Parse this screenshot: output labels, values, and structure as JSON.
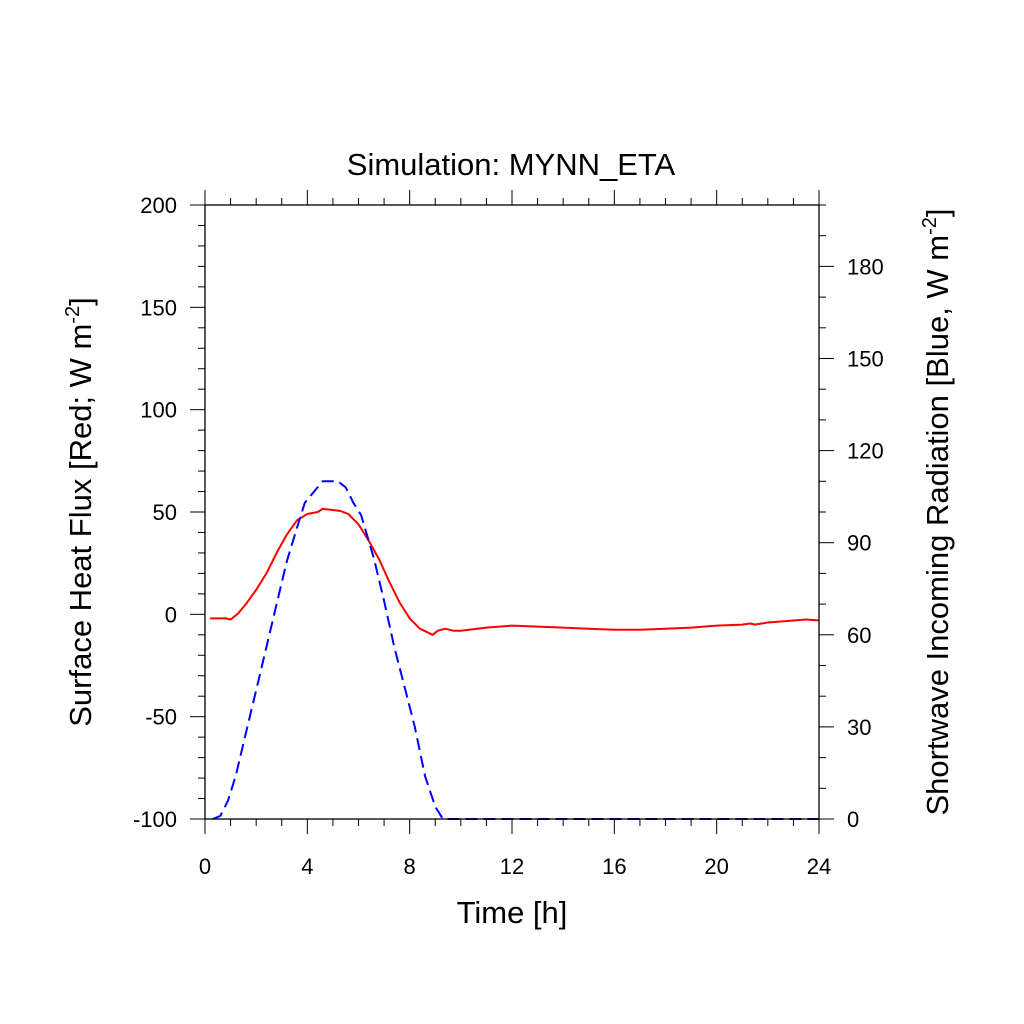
{
  "chart_data": {
    "type": "line",
    "title": "Simulation: MYNN_ETA",
    "xlabel": "Time [h]",
    "ylabel_left": "Surface Heat Flux [Red; W m",
    "ylabel_left_sup": "-2",
    "ylabel_left_end": "]",
    "ylabel_right": "Shortwave Incoming Radiation [Blue, W m",
    "ylabel_right_sup": "-2",
    "ylabel_right_end": "]",
    "xlim": [
      0,
      24
    ],
    "ylim_left": [
      -100,
      200
    ],
    "ylim_right": [
      0,
      200
    ],
    "x_ticks": [
      "0",
      "4",
      "8",
      "12",
      "16",
      "20",
      "24"
    ],
    "y_left_ticks": [
      "-100",
      "-50",
      "0",
      "50",
      "100",
      "150",
      "200"
    ],
    "y_right_ticks": [
      "0",
      "30",
      "60",
      "90",
      "120",
      "150",
      "180"
    ],
    "grid": false,
    "series": [
      {
        "axis": "left",
        "color": "#ff0000",
        "style": "solid",
        "x": [
          0.2,
          0.5,
          0.8,
          1.0,
          1.3,
          1.6,
          2.0,
          2.4,
          2.8,
          3.2,
          3.6,
          4.0,
          4.4,
          4.6,
          5.0,
          5.3,
          5.6,
          6.0,
          6.4,
          6.8,
          7.2,
          7.6,
          8.0,
          8.4,
          8.9,
          9.1,
          9.4,
          9.7,
          10.0,
          11.0,
          12.0,
          13.0,
          14.0,
          15.0,
          16.0,
          17.0,
          18.0,
          19.0,
          20.0,
          21.0,
          21.3,
          21.5,
          22.0,
          22.5,
          23.0,
          23.5,
          24.0
        ],
        "values": [
          -2,
          -2,
          -2,
          -2.5,
          0.5,
          5,
          12,
          20,
          30,
          39,
          46,
          49,
          50,
          51.5,
          51,
          50.5,
          49,
          44,
          36,
          27,
          16,
          6,
          -2,
          -7,
          -10,
          -8,
          -7,
          -8,
          -8,
          -6.5,
          -5.5,
          -6,
          -6.5,
          -7,
          -7.5,
          -7.5,
          -7,
          -6.5,
          -5.5,
          -5,
          -4.5,
          -5,
          -4,
          -3.5,
          -3,
          -2.5,
          -3
        ]
      },
      {
        "axis": "right",
        "color": "#0000ff",
        "style": "dashed",
        "x": [
          0.3,
          0.6,
          0.9,
          1.2,
          1.6,
          2.0,
          2.4,
          2.8,
          3.2,
          3.6,
          3.9,
          4.3,
          4.6,
          4.8,
          5.2,
          5.5,
          5.8,
          6.1,
          6.6,
          7.0,
          7.4,
          7.8,
          8.2,
          8.6,
          9.0,
          9.3,
          9.6,
          10.0,
          12.0,
          16.0,
          20.0,
          24.0
        ],
        "values": [
          0,
          1,
          6,
          14,
          28,
          42,
          56,
          70,
          84,
          95,
          103,
          107,
          110,
          110,
          110,
          108,
          103,
          99,
          85,
          71,
          56,
          43,
          30,
          14,
          4,
          0,
          0,
          0,
          0,
          0,
          0,
          0
        ]
      }
    ]
  }
}
